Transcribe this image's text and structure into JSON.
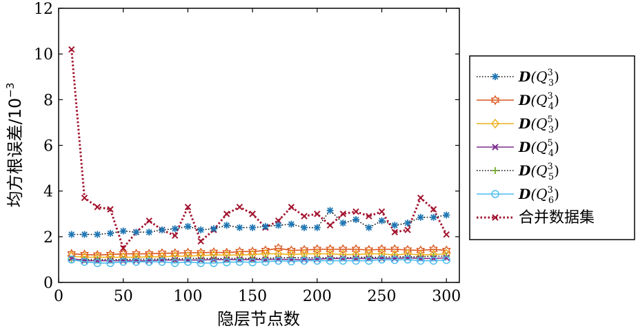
{
  "chart_data": {
    "type": "line",
    "xlabel": "隐层节点数",
    "ylabel_main": "均方根误差/10",
    "ylabel_exp": "−3",
    "xlim": [
      0,
      310
    ],
    "ylim": [
      0,
      12
    ],
    "xticks": [
      0,
      50,
      100,
      150,
      200,
      250,
      300
    ],
    "yticks": [
      0,
      2,
      4,
      6,
      8,
      10,
      12
    ],
    "grid": false,
    "legend_position": "right-outside",
    "x": [
      10,
      20,
      30,
      40,
      50,
      60,
      70,
      80,
      90,
      100,
      110,
      120,
      130,
      140,
      150,
      160,
      170,
      180,
      190,
      200,
      210,
      220,
      230,
      240,
      250,
      260,
      270,
      280,
      290,
      300
    ],
    "series": [
      {
        "key": "q33",
        "legend": {
          "base": "D",
          "paren_open": "(Q",
          "sup": "3",
          "sub": "3",
          "paren_close": ")"
        },
        "color": "#1f77b4",
        "line": "dotted-black",
        "marker": "asterisk",
        "values": [
          2.1,
          2.1,
          2.1,
          2.15,
          2.25,
          2.2,
          2.2,
          2.3,
          2.35,
          2.45,
          2.3,
          2.35,
          2.5,
          2.4,
          2.4,
          2.45,
          2.5,
          2.55,
          2.4,
          2.4,
          3.15,
          2.6,
          2.75,
          2.4,
          2.7,
          2.5,
          2.6,
          2.85,
          2.85,
          2.95
        ]
      },
      {
        "key": "q43",
        "legend": {
          "base": "D",
          "paren_open": "(Q",
          "sup": "3",
          "sub": "4",
          "paren_close": ")"
        },
        "color": "#d95319",
        "line": "solid",
        "marker": "hexagram",
        "values": [
          1.25,
          1.22,
          1.2,
          1.22,
          1.25,
          1.25,
          1.25,
          1.28,
          1.28,
          1.3,
          1.3,
          1.32,
          1.3,
          1.35,
          1.35,
          1.4,
          1.5,
          1.4,
          1.42,
          1.45,
          1.45,
          1.45,
          1.45,
          1.42,
          1.45,
          1.45,
          1.42,
          1.4,
          1.45,
          1.4
        ]
      },
      {
        "key": "q35",
        "legend": {
          "base": "D",
          "paren_open": "(Q",
          "sup": "5",
          "sub": "3",
          "paren_close": ")"
        },
        "color": "#edb120",
        "line": "solid",
        "marker": "diamond",
        "values": [
          1.15,
          1.1,
          1.1,
          1.1,
          1.1,
          1.1,
          1.12,
          1.12,
          1.15,
          1.15,
          1.18,
          1.2,
          1.2,
          1.2,
          1.22,
          1.25,
          1.25,
          1.22,
          1.25,
          1.25,
          1.25,
          1.22,
          1.22,
          1.25,
          1.25,
          1.2,
          1.25,
          1.2,
          1.22,
          1.25
        ]
      },
      {
        "key": "q45",
        "legend": {
          "base": "D",
          "paren_open": "(Q",
          "sup": "5",
          "sub": "4",
          "paren_close": ")"
        },
        "color": "#7e2f8e",
        "line": "solid",
        "marker": "x",
        "values": [
          1.05,
          0.95,
          0.95,
          0.95,
          0.95,
          0.95,
          0.95,
          0.98,
          0.98,
          0.98,
          0.98,
          1.0,
          1.0,
          1.0,
          1.0,
          1.0,
          1.02,
          1.0,
          1.0,
          1.02,
          1.05,
          1.05,
          1.05,
          1.05,
          1.05,
          1.05,
          1.08,
          1.05,
          1.05,
          1.08
        ]
      },
      {
        "key": "q53",
        "legend": {
          "base": "D",
          "paren_open": "(Q",
          "sup": "3",
          "sub": "5",
          "paren_close": ")"
        },
        "color": "#77ac30",
        "line": "dotted-black",
        "marker": "plus",
        "values": [
          1.0,
          1.0,
          1.0,
          1.0,
          1.0,
          1.02,
          1.02,
          1.02,
          1.02,
          1.05,
          1.05,
          1.05,
          1.05,
          1.05,
          1.05,
          1.05,
          1.08,
          1.08,
          1.08,
          1.08,
          1.08,
          1.08,
          1.1,
          1.1,
          1.1,
          1.12,
          1.12,
          1.12,
          1.15,
          1.15
        ]
      },
      {
        "key": "q63",
        "legend": {
          "base": "D",
          "paren_open": "(Q",
          "sup": "3",
          "sub": "6",
          "paren_close": ")"
        },
        "color": "#4dbeee",
        "line": "solid",
        "marker": "circle",
        "values": [
          1.0,
          0.9,
          0.85,
          0.85,
          0.9,
          0.9,
          0.9,
          0.9,
          0.85,
          0.9,
          0.85,
          0.85,
          0.88,
          0.9,
          0.88,
          0.9,
          0.95,
          0.92,
          0.95,
          0.95,
          0.95,
          0.95,
          0.95,
          0.95,
          1.0,
          0.98,
          1.0,
          0.95,
          0.95,
          0.98
        ]
      },
      {
        "key": "merged",
        "legend": {
          "text": "合并数据集"
        },
        "color": "#a2142f",
        "line": "dotted",
        "marker": "x",
        "values": [
          10.2,
          3.7,
          3.3,
          3.2,
          1.5,
          2.2,
          2.7,
          2.3,
          2.05,
          3.3,
          1.8,
          2.3,
          3.0,
          3.3,
          3.0,
          2.4,
          2.7,
          3.3,
          2.9,
          3.0,
          2.5,
          3.0,
          3.1,
          2.9,
          3.1,
          2.2,
          2.3,
          3.7,
          3.2,
          2.1
        ]
      }
    ]
  }
}
